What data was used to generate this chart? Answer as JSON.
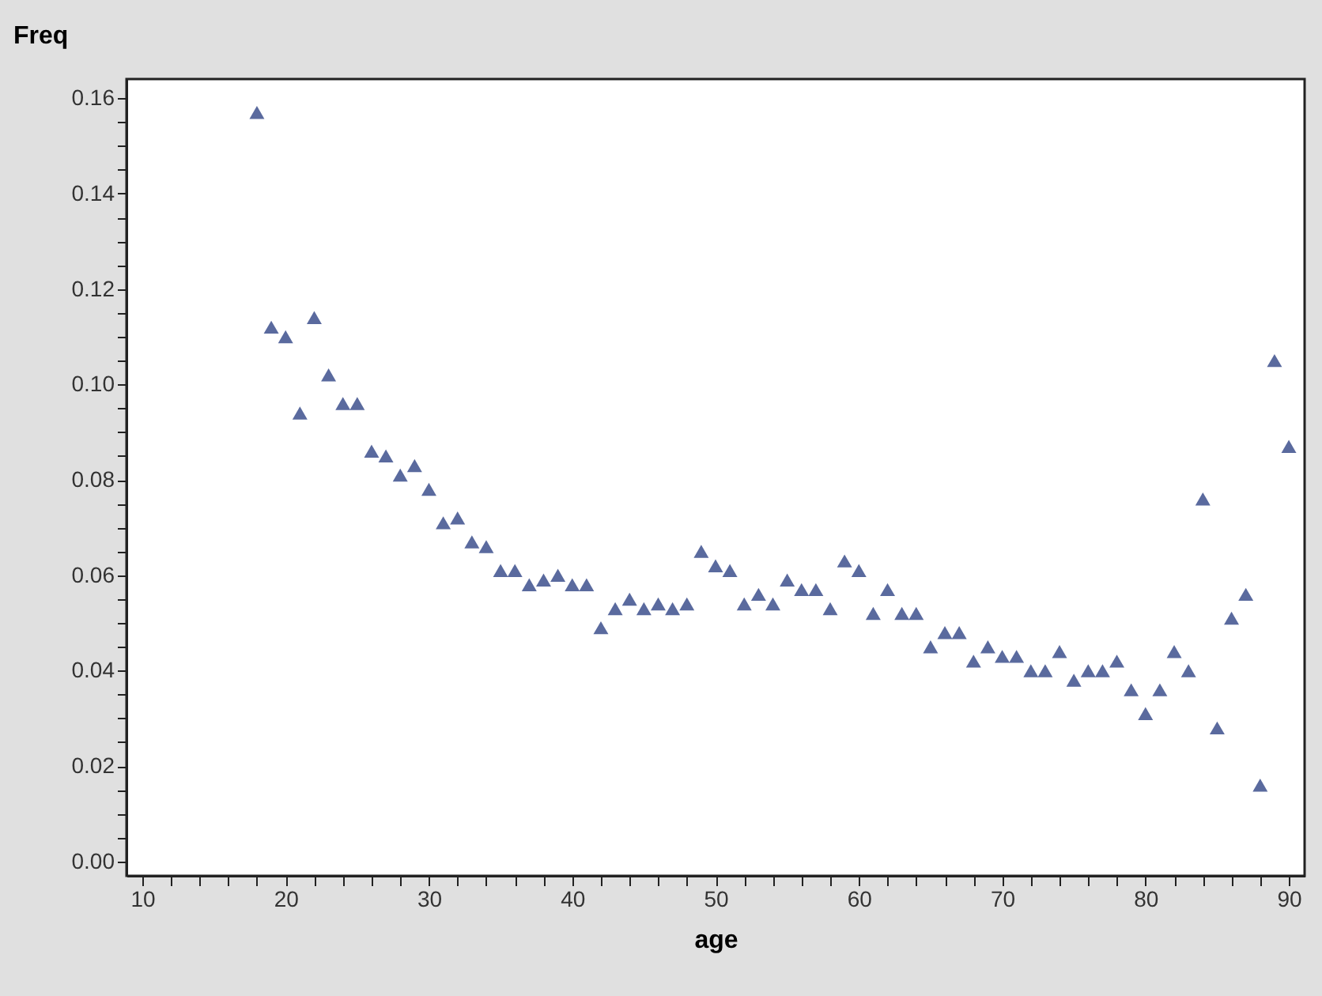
{
  "chart_data": {
    "type": "scatter",
    "xlabel": "age",
    "ylabel": "Freq",
    "marker": "triangle",
    "x": [
      18,
      19,
      20,
      21,
      22,
      23,
      24,
      25,
      26,
      27,
      28,
      29,
      30,
      31,
      32,
      33,
      34,
      35,
      36,
      37,
      38,
      39,
      40,
      41,
      42,
      43,
      44,
      45,
      46,
      47,
      48,
      49,
      50,
      51,
      52,
      53,
      54,
      55,
      56,
      57,
      58,
      59,
      60,
      61,
      62,
      63,
      64,
      65,
      66,
      67,
      68,
      69,
      70,
      71,
      72,
      73,
      74,
      75,
      76,
      77,
      78,
      79,
      80,
      81,
      82,
      83,
      84,
      85,
      86,
      87,
      88,
      89,
      90
    ],
    "series": [
      {
        "color": "#5a6a9e",
        "values": [
          0.157,
          0.112,
          0.11,
          0.094,
          0.114,
          0.102,
          0.096,
          0.096,
          0.086,
          0.085,
          0.081,
          0.083,
          0.078,
          0.071,
          0.072,
          0.067,
          0.066,
          0.061,
          0.061,
          0.058,
          0.059,
          0.06,
          0.058,
          0.058,
          0.049,
          0.053,
          0.055,
          0.053,
          0.054,
          0.053,
          0.054,
          0.065,
          0.062,
          0.061,
          0.054,
          0.056,
          0.054,
          0.059,
          0.057,
          0.057,
          0.053,
          0.063,
          0.061,
          0.052,
          0.057,
          0.052,
          0.052,
          0.045,
          0.048,
          0.048,
          0.042,
          0.045,
          0.043,
          0.043,
          0.04,
          0.04,
          0.044,
          0.038,
          0.04,
          0.04,
          0.042,
          0.036,
          0.031,
          0.036,
          0.044,
          0.04,
          0.076,
          0.028,
          0.051,
          0.056,
          0.016,
          0.105,
          0.087
        ]
      }
    ],
    "xlim": [
      8.9,
      91.1
    ],
    "xticks": [
      10,
      {
        "value": 12,
        "label": null
      },
      {
        "value": 14,
        "label": null
      },
      {
        "value": 16,
        "label": null
      },
      {
        "value": 18,
        "label": null
      },
      20,
      {
        "value": 22,
        "label": null
      },
      {
        "value": 24,
        "label": null
      },
      {
        "value": 26,
        "label": null
      },
      {
        "value": 28,
        "label": null
      },
      30,
      {
        "value": 32,
        "label": null
      },
      {
        "value": 34,
        "label": null
      },
      {
        "value": 36,
        "label": null
      },
      {
        "value": 38,
        "label": null
      },
      40,
      {
        "value": 42,
        "label": null
      },
      {
        "value": 44,
        "label": null
      },
      {
        "value": 46,
        "label": null
      },
      {
        "value": 48,
        "label": null
      },
      50,
      {
        "value": 52,
        "label": null
      },
      {
        "value": 54,
        "label": null
      },
      {
        "value": 56,
        "label": null
      },
      {
        "value": 58,
        "label": null
      },
      60,
      {
        "value": 62,
        "label": null
      },
      {
        "value": 64,
        "label": null
      },
      {
        "value": 66,
        "label": null
      },
      {
        "value": 68,
        "label": null
      },
      70,
      {
        "value": 72,
        "label": null
      },
      {
        "value": 74,
        "label": null
      },
      {
        "value": 76,
        "label": null
      },
      {
        "value": 78,
        "label": null
      },
      80,
      {
        "value": 82,
        "label": null
      },
      {
        "value": 84,
        "label": null
      },
      {
        "value": 86,
        "label": null
      },
      {
        "value": 88,
        "label": null
      },
      90
    ],
    "ylim": [
      -0.003,
      0.164
    ],
    "yticks": [
      {
        "value": 0,
        "label": "0.00"
      },
      {
        "value": 0.005,
        "label": null
      },
      {
        "value": 0.01,
        "label": null
      },
      {
        "value": 0.015,
        "label": null
      },
      {
        "value": 0.02,
        "label": "0.02"
      },
      {
        "value": 0.025,
        "label": null
      },
      {
        "value": 0.03,
        "label": null
      },
      {
        "value": 0.035,
        "label": null
      },
      {
        "value": 0.04,
        "label": "0.04"
      },
      {
        "value": 0.045,
        "label": null
      },
      {
        "value": 0.05,
        "label": null
      },
      {
        "value": 0.055,
        "label": null
      },
      {
        "value": 0.06,
        "label": "0.06"
      },
      {
        "value": 0.065,
        "label": null
      },
      {
        "value": 0.07,
        "label": null
      },
      {
        "value": 0.075,
        "label": null
      },
      {
        "value": 0.08,
        "label": "0.08"
      },
      {
        "value": 0.085,
        "label": null
      },
      {
        "value": 0.09,
        "label": null
      },
      {
        "value": 0.095,
        "label": null
      },
      {
        "value": 0.1,
        "label": "0.10"
      },
      {
        "value": 0.105,
        "label": null
      },
      {
        "value": 0.11,
        "label": null
      },
      {
        "value": 0.115,
        "label": null
      },
      {
        "value": 0.12,
        "label": "0.12"
      },
      {
        "value": 0.125,
        "label": null
      },
      {
        "value": 0.13,
        "label": null
      },
      {
        "value": 0.135,
        "label": null
      },
      {
        "value": 0.14,
        "label": "0.14"
      },
      {
        "value": 0.145,
        "label": null
      },
      {
        "value": 0.15,
        "label": null
      },
      {
        "value": 0.155,
        "label": null
      },
      {
        "value": 0.16,
        "label": "0.16"
      }
    ]
  }
}
